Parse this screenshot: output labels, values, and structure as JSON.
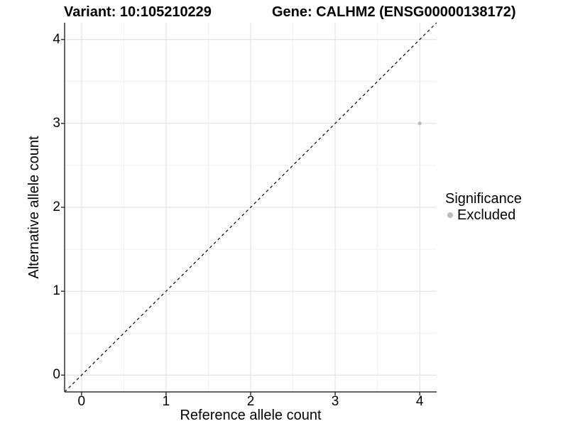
{
  "header": {
    "variant_title": "Variant: 10:105210229",
    "gene_title": "Gene: CALHM2 (ENSG00000138172)"
  },
  "chart_data": {
    "type": "scatter",
    "title": "Variant: 10:105210229   Gene: CALHM2 (ENSG00000138172)",
    "xlabel": "Reference allele count",
    "ylabel": "Alternative allele count",
    "xlim": [
      -0.2,
      4.2
    ],
    "ylim": [
      -0.2,
      4.2
    ],
    "x_major_ticks": [
      0,
      1,
      2,
      3,
      4
    ],
    "y_major_ticks": [
      0,
      1,
      2,
      3,
      4
    ],
    "x_minor_ticks": [
      0.5,
      1.5,
      2.5,
      3.5
    ],
    "y_minor_ticks": [
      0.5,
      1.5,
      2.5,
      3.5
    ],
    "x_tick_labels": [
      "0",
      "1",
      "2",
      "3",
      "4"
    ],
    "y_tick_labels": [
      "0",
      "1",
      "2",
      "3",
      "4"
    ],
    "grid": "major and minor, light gray on white panel",
    "points": [
      {
        "x": 4,
        "y": 3,
        "series": "Excluded",
        "color": "#bdbdbd"
      }
    ],
    "reference_line": {
      "type": "identity y=x",
      "style": "dashed",
      "color": "#000000",
      "from": [
        -0.2,
        -0.2
      ],
      "to": [
        4.2,
        4.2
      ]
    },
    "legend": {
      "title": "Significance",
      "position": "right",
      "entries": [
        {
          "label": "Excluded",
          "color": "#bdbdbd"
        }
      ]
    },
    "colors": {
      "panel_background": "#ffffff",
      "grid_major": "#e4e4e4",
      "grid_minor": "#f1f1f1",
      "axis_line": "#333333",
      "text": "#000000",
      "excluded_point": "#bdbdbd"
    }
  }
}
